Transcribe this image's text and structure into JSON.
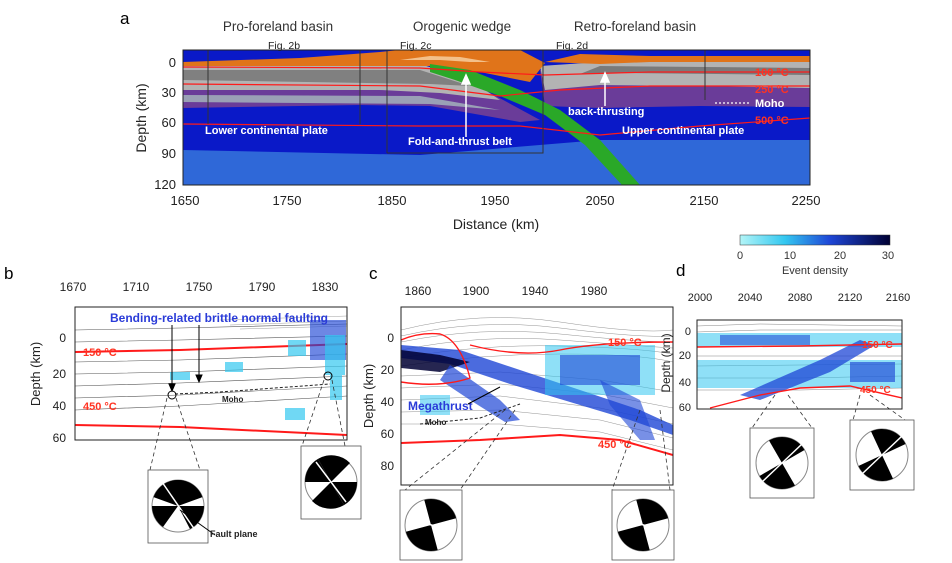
{
  "panel_a": {
    "letter": "a",
    "headings": [
      "Pro-foreland basin",
      "Orogenic wedge",
      "Retro-foreland basin"
    ],
    "fig_refs": [
      "Fig. 2b",
      "Fig. 2c",
      "Fig. 2d"
    ],
    "ylabel": "Depth (km)",
    "xlabel": "Distance (km)",
    "x_ticks": [
      "1650",
      "1750",
      "1850",
      "1950",
      "2050",
      "2150",
      "2250"
    ],
    "y_ticks": [
      "0",
      "30",
      "60",
      "90",
      "120"
    ],
    "temps": [
      "100 °C",
      "250 °C",
      "500 °C"
    ],
    "moho": "Moho",
    "lower_plate": "Lower continental plate",
    "upper_plate": "Upper continental plate",
    "fold_thrust": "Fold-and-thrust belt",
    "back_thrust": "back-thrusting"
  },
  "colorbar": {
    "title": "Event density",
    "ticks": [
      "0",
      "10",
      "20",
      "30"
    ],
    "start_color": "#b3f5f7",
    "end_color": "#000033"
  },
  "panel_b": {
    "letter": "b",
    "x_ticks": [
      "1670",
      "1710",
      "1750",
      "1790",
      "1830"
    ],
    "y_ticks": [
      "0",
      "20",
      "40",
      "60"
    ],
    "ylabel": "Depth (km)",
    "title": "Bending-related brittle normal faulting",
    "temps": [
      "150 °C",
      "450 °C"
    ],
    "moho": "Moho",
    "fault_plane": "Fault plane"
  },
  "panel_c": {
    "letter": "c",
    "x_ticks": [
      "1860",
      "1900",
      "1940",
      "1980"
    ],
    "y_ticks": [
      "0",
      "20",
      "40",
      "60",
      "80"
    ],
    "ylabel": "Depth (km)",
    "temps": [
      "150 °C",
      "450 °C"
    ],
    "megathrust": "Megathrust",
    "moho": "Moho"
  },
  "panel_d": {
    "letter": "d",
    "x_ticks": [
      "2000",
      "2040",
      "2080",
      "2120",
      "2160"
    ],
    "y_ticks": [
      "0",
      "20",
      "40",
      "60"
    ],
    "ylabel": "Depth (km)",
    "temps": [
      "150 °C",
      "450 °C"
    ]
  },
  "colors": {
    "mantle": "#0a19c8",
    "crust_gray": "#b3b3b3",
    "purple": "#6a3c99",
    "sediment": "#e0741a",
    "slab": "#2aa828",
    "isotherm": "#ff1a1a",
    "title_blue": "#2a3bd8"
  }
}
